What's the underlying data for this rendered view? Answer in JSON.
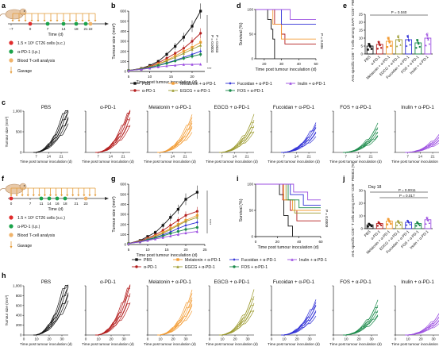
{
  "panel_letters": [
    "a",
    "b",
    "c",
    "d",
    "e",
    "f",
    "g",
    "h",
    "i",
    "j"
  ],
  "colors": {
    "PBS": "#111111",
    "aPD1": "#b31b1b",
    "Melatonin": "#f39c34",
    "EGCG": "#9c9a2e",
    "Fucoidan": "#2f2fd6",
    "FOS": "#1a8a4a",
    "Inulin": "#9b4de0"
  },
  "groups": [
    "PBS",
    "α-PD-1",
    "Melatonin + α-PD-1",
    "EGCG + α-PD-1",
    "Fucoidan + α-PD-1",
    "FOS + α-PD-1",
    "Inulin + α-PD-1"
  ],
  "legend_top": [
    {
      "label": "PBS",
      "key": "PBS",
      "marker": "square"
    },
    {
      "label": "α-PD-1",
      "key": "aPD1",
      "marker": "circle"
    },
    {
      "label": "Melatonin + α-PD-1",
      "key": "Melatonin",
      "marker": "square"
    },
    {
      "label": "EGCG + α-PD-1",
      "key": "EGCG",
      "marker": "triangle"
    },
    {
      "label": "Fucoidan + α-PD-1",
      "key": "Fucoidan",
      "marker": "diamond"
    },
    {
      "label": "FOS + α-PD-1",
      "key": "FOS",
      "marker": "circle"
    },
    {
      "label": "Inulin + α-PD-1",
      "key": "Inulin",
      "marker": "triangle"
    }
  ],
  "protocol_a": {
    "ticks": [
      "−7",
      "0",
      "7",
      "14",
      "18",
      "21",
      "22"
    ],
    "time_label": "Time (d)",
    "legend": [
      "1.5 × 10⁶ CT26 cells (s.c.)",
      "α-PD-1 (i.p.)",
      "Blood T-cell analysis",
      "Gavage"
    ]
  },
  "protocol_f": {
    "ticks": [
      "0",
      "7",
      "11",
      "14",
      "16",
      "18",
      "21",
      "23"
    ],
    "time_label": "Time (d)",
    "legend": [
      "1.5 × 10⁶ CT26 cells (s.c.)",
      "α-PD-1 (i.p.)",
      "Blood T-cell analysis",
      "Gavage"
    ]
  },
  "chart_data": [
    {
      "id": "b",
      "type": "line",
      "ylabel": "Tumour size (mm³)",
      "xlabel": "Time post tumour inoculation (d)",
      "xlim": [
        5,
        23
      ],
      "ylim": [
        0,
        600
      ],
      "xticks": [
        "5",
        "10",
        "15",
        "20"
      ],
      "yticks": [
        "0",
        "100",
        "200",
        "300",
        "400",
        "500",
        "600"
      ],
      "x": [
        5,
        8,
        10,
        12,
        14,
        16,
        18,
        20,
        22
      ],
      "series": [
        {
          "key": "PBS",
          "values": [
            10,
            30,
            60,
            100,
            170,
            250,
            340,
            450,
            600
          ]
        },
        {
          "key": "aPD1",
          "values": [
            10,
            25,
            50,
            85,
            130,
            180,
            230,
            300,
            380
          ]
        },
        {
          "key": "Melatonin",
          "values": [
            10,
            25,
            45,
            75,
            110,
            155,
            200,
            240,
            290
          ]
        },
        {
          "key": "EGCG",
          "values": [
            10,
            25,
            45,
            70,
            105,
            140,
            180,
            220,
            260
          ]
        },
        {
          "key": "Fucoidan",
          "values": [
            10,
            22,
            40,
            60,
            85,
            110,
            140,
            170,
            200
          ]
        },
        {
          "key": "FOS",
          "values": [
            10,
            22,
            38,
            58,
            80,
            105,
            130,
            150,
            170
          ]
        },
        {
          "key": "Inulin",
          "values": [
            10,
            20,
            32,
            45,
            55,
            62,
            70,
            70,
            72
          ]
        }
      ],
      "annotations": [
        "P = 0.0033",
        "P = 0.0003",
        "***"
      ]
    },
    {
      "id": "d",
      "type": "line",
      "ylabel": "Survival (%)",
      "xlabel": "Time post tumour inoculation (d)",
      "xlim": [
        15,
        50
      ],
      "ylim": [
        0,
        100
      ],
      "xticks": [
        "20",
        "30",
        "40",
        "50"
      ],
      "yticks": [
        "0",
        "50",
        "100"
      ],
      "annotation": "P = 0.006",
      "series": [
        {
          "key": "PBS",
          "steps": [
            [
              15,
              100
            ],
            [
              22,
              100
            ],
            [
              22,
              80
            ],
            [
              24,
              60
            ],
            [
              25,
              40
            ],
            [
              26,
              0
            ]
          ]
        },
        {
          "key": "aPD1",
          "steps": [
            [
              15,
              100
            ],
            [
              26,
              100
            ],
            [
              26,
              70
            ],
            [
              30,
              50
            ],
            [
              32,
              30
            ],
            [
              50,
              30
            ]
          ]
        },
        {
          "key": "Melatonin",
          "steps": [
            [
              15,
              100
            ],
            [
              25,
              100
            ],
            [
              25,
              70
            ],
            [
              30,
              40
            ],
            [
              50,
              40
            ]
          ]
        },
        {
          "key": "Fucoidan",
          "steps": [
            [
              15,
              100
            ],
            [
              30,
              100
            ],
            [
              30,
              70
            ],
            [
              50,
              70
            ]
          ]
        },
        {
          "key": "Inulin",
          "steps": [
            [
              15,
              100
            ],
            [
              35,
              100
            ],
            [
              35,
              80
            ],
            [
              50,
              80
            ]
          ]
        }
      ]
    },
    {
      "id": "e",
      "type": "bar",
      "ylabel": "AH1-specific CD8⁺ T cells among DAPI⁻CD8⁺ PBMCs (%)",
      "ylim": [
        0,
        25
      ],
      "yticks": [
        "0",
        "5",
        "10",
        "15",
        "20",
        "25"
      ],
      "categories": [
        "PBS",
        "α-PD-1",
        "Melatonin + α-PD-1",
        "EGCG + α-PD-1",
        "Fucoidan + α-PD-1",
        "FOS + α-PD-1",
        "Inulin + α-PD-1"
      ],
      "values": [
        5,
        6,
        8,
        9,
        9,
        7,
        10
      ],
      "annotation": "P = 0.040"
    },
    {
      "id": "g",
      "type": "line",
      "ylabel": "Tumour size (mm³)",
      "xlabel": "Time post tumour inoculation (d)",
      "xlim": [
        5,
        25
      ],
      "ylim": [
        0,
        600
      ],
      "xticks": [
        "5",
        "10",
        "15",
        "20",
        "25"
      ],
      "yticks": [
        "0",
        "100",
        "200",
        "300",
        "400",
        "500",
        "600"
      ],
      "x": [
        5,
        8,
        10,
        12,
        14,
        16,
        18,
        20,
        23
      ],
      "series": [
        {
          "key": "PBS",
          "values": [
            10,
            40,
            80,
            120,
            190,
            270,
            350,
            450,
            520
          ]
        },
        {
          "key": "aPD1",
          "values": [
            10,
            35,
            65,
            95,
            140,
            190,
            240,
            290,
            330
          ]
        },
        {
          "key": "Melatonin",
          "values": [
            10,
            30,
            55,
            85,
            120,
            160,
            200,
            240,
            290
          ]
        },
        {
          "key": "EGCG",
          "values": [
            10,
            30,
            55,
            80,
            110,
            150,
            190,
            230,
            270
          ]
        },
        {
          "key": "Fucoidan",
          "values": [
            10,
            28,
            50,
            70,
            95,
            125,
            160,
            190,
            220
          ]
        },
        {
          "key": "FOS",
          "values": [
            10,
            25,
            45,
            65,
            85,
            110,
            130,
            150,
            170
          ]
        },
        {
          "key": "Inulin",
          "values": [
            10,
            25,
            40,
            55,
            70,
            85,
            100,
            115,
            130
          ]
        }
      ],
      "annotation": "****"
    },
    {
      "id": "i",
      "type": "line",
      "ylabel": "Survival (%)",
      "xlabel": "Time post tumour inoculation (d)",
      "xlim": [
        0,
        60
      ],
      "ylim": [
        0,
        100
      ],
      "xticks": [
        "0",
        "20",
        "40",
        "60"
      ],
      "yticks": [
        "0",
        "50",
        "100"
      ],
      "annotation": "P = 0.0009",
      "series": [
        {
          "key": "PBS",
          "steps": [
            [
              0,
              100
            ],
            [
              22,
              100
            ],
            [
              22,
              80
            ],
            [
              26,
              40
            ],
            [
              30,
              20
            ],
            [
              34,
              0
            ]
          ]
        },
        {
          "key": "aPD1",
          "steps": [
            [
              0,
              100
            ],
            [
              25,
              100
            ],
            [
              25,
              70
            ],
            [
              32,
              50
            ],
            [
              38,
              30
            ],
            [
              60,
              30
            ]
          ]
        },
        {
          "key": "Melatonin",
          "steps": [
            [
              0,
              100
            ],
            [
              26,
              100
            ],
            [
              26,
              70
            ],
            [
              34,
              50
            ],
            [
              60,
              50
            ]
          ]
        },
        {
          "key": "EGCG",
          "steps": [
            [
              0,
              100
            ],
            [
              28,
              100
            ],
            [
              28,
              70
            ],
            [
              36,
              45
            ],
            [
              60,
              45
            ]
          ]
        },
        {
          "key": "Fucoidan",
          "steps": [
            [
              0,
              100
            ],
            [
              32,
              100
            ],
            [
              32,
              80
            ],
            [
              44,
              60
            ],
            [
              60,
              60
            ]
          ]
        },
        {
          "key": "FOS",
          "steps": [
            [
              0,
              100
            ],
            [
              30,
              100
            ],
            [
              30,
              70
            ],
            [
              40,
              55
            ],
            [
              60,
              55
            ]
          ]
        },
        {
          "key": "Inulin",
          "steps": [
            [
              0,
              100
            ],
            [
              35,
              100
            ],
            [
              35,
              85
            ],
            [
              48,
              70
            ],
            [
              60,
              70
            ]
          ]
        }
      ]
    },
    {
      "id": "j",
      "type": "bar",
      "title": "Day 18",
      "ylabel": "AH1-specific CD8⁺ T cells among DAPI⁻CD8⁺ PBMCs (%)",
      "ylim": [
        0,
        30
      ],
      "yticks": [
        "0",
        "10",
        "20",
        "30"
      ],
      "categories": [
        "PBS",
        "α-PD-1",
        "Melatonin + α-PD-1",
        "EGCG + α-PD-1",
        "Fucoidan + α-PD-1",
        "FOS + α-PD-1",
        "Inulin + α-PD-1"
      ],
      "values": [
        3,
        4,
        6,
        5,
        5,
        4,
        7
      ],
      "annotations": [
        "P = 0.0011",
        "P = 0.017"
      ]
    }
  ],
  "row_c": {
    "ylabel": "Tumour size (mm³)",
    "xlabel": "Time post tumour inoculation (d)",
    "xticks": [
      "7",
      "14",
      "21"
    ],
    "yticks": [
      "0",
      "500",
      "1,000"
    ],
    "panels": [
      "PBS",
      "α-PD-1",
      "Melatonin + α-PD-1",
      "EGCG + α-PD-1",
      "Fucoidan + α-PD-1",
      "FOS + α-PD-1",
      "Inulin + α-PD-1"
    ]
  },
  "row_h": {
    "ylabel": "Tumour size (mm³)",
    "xlabel": "Time post tumour inoculation (d)",
    "xticks": [
      "0",
      "10",
      "20",
      "30"
    ],
    "yticks": [
      "0",
      "200",
      "400",
      "600",
      "800",
      "1,000"
    ],
    "panels": [
      "PBS",
      "α-PD-1",
      "Melatonin + α-PD-1",
      "EGCG + α-PD-1",
      "Fucoidan + α-PD-1",
      "FOS + α-PD-1",
      "Inulin + α-PD-1"
    ]
  }
}
